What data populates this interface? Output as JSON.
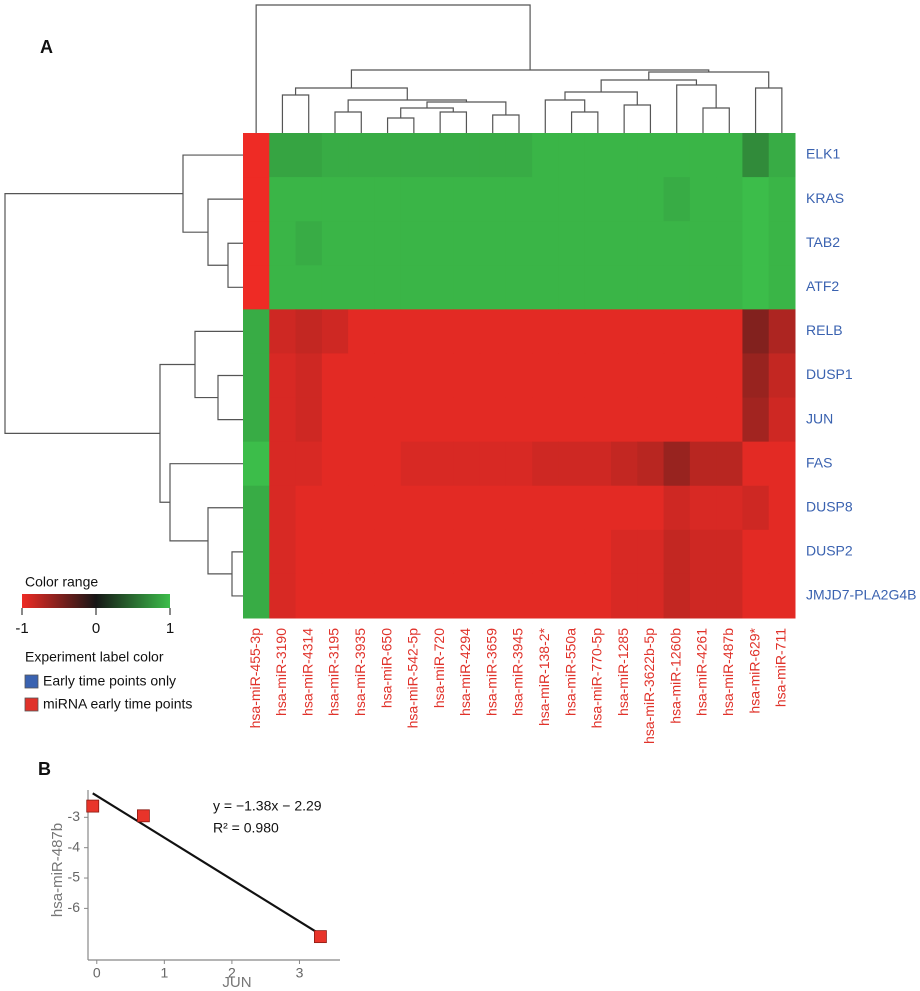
{
  "chart_data": [
    {
      "type": "heatmap",
      "panel_label": "A",
      "rows": [
        "ELK1",
        "KRAS",
        "TAB2",
        "ATF2",
        "RELB",
        "DUSP1",
        "JUN",
        "FAS",
        "DUSP8",
        "DUSP2",
        "JMJD7-PLA2G4B"
      ],
      "columns": [
        "hsa-miR-455-3p",
        "hsa-miR-3190",
        "hsa-miR-4314",
        "hsa-miR-3195",
        "hsa-miR-3935",
        "hsa-miR-650",
        "hsa-miR-542-5p",
        "hsa-miR-720",
        "hsa-miR-4294",
        "hsa-miR-3659",
        "hsa-miR-3945",
        "hsa-miR-138-2*",
        "hsa-miR-550a",
        "hsa-miR-770-5p",
        "hsa-miR-1285",
        "hsa-miR-3622b-5p",
        "hsa-miR-1260b",
        "hsa-miR-4261",
        "hsa-miR-487b",
        "hsa-miR-629*",
        "hsa-miR-711"
      ],
      "values": [
        [
          -1,
          0.85,
          0.85,
          0.9,
          0.9,
          0.9,
          0.9,
          0.9,
          0.9,
          0.9,
          0.9,
          0.95,
          0.95,
          0.95,
          0.95,
          0.95,
          0.95,
          0.95,
          0.95,
          0.7,
          0.9
        ],
        [
          -1,
          0.95,
          0.95,
          0.95,
          0.95,
          0.95,
          0.95,
          0.95,
          0.95,
          0.95,
          0.95,
          0.95,
          0.95,
          0.95,
          0.95,
          0.95,
          0.9,
          0.95,
          0.95,
          1,
          0.95
        ],
        [
          -1,
          0.95,
          0.9,
          0.95,
          0.95,
          0.95,
          0.95,
          0.95,
          0.95,
          0.95,
          0.95,
          0.95,
          0.95,
          0.95,
          0.95,
          0.95,
          0.95,
          0.95,
          0.95,
          1,
          0.95
        ],
        [
          -1,
          0.95,
          0.95,
          0.95,
          0.95,
          0.95,
          0.95,
          0.95,
          0.95,
          0.95,
          0.95,
          0.95,
          0.95,
          0.95,
          0.95,
          0.95,
          0.95,
          0.95,
          0.95,
          1,
          0.95
        ],
        [
          0.9,
          -0.85,
          -0.8,
          -0.85,
          -0.95,
          -0.95,
          -0.95,
          -0.95,
          -0.95,
          -0.95,
          -0.95,
          -0.95,
          -0.95,
          -0.95,
          -0.95,
          -0.95,
          -0.95,
          -0.95,
          -0.95,
          -0.5,
          -0.7
        ],
        [
          0.9,
          -0.9,
          -0.85,
          -0.95,
          -0.95,
          -0.95,
          -0.95,
          -0.95,
          -0.95,
          -0.95,
          -0.95,
          -0.95,
          -0.95,
          -0.95,
          -0.95,
          -0.95,
          -0.95,
          -0.95,
          -0.95,
          -0.6,
          -0.8
        ],
        [
          0.9,
          -0.9,
          -0.85,
          -0.95,
          -0.95,
          -0.95,
          -0.95,
          -0.95,
          -0.95,
          -0.95,
          -0.95,
          -0.95,
          -0.95,
          -0.95,
          -0.95,
          -0.95,
          -0.95,
          -0.95,
          -0.95,
          -0.65,
          -0.85
        ],
        [
          1,
          -0.9,
          -0.9,
          -0.95,
          -0.95,
          -0.95,
          -0.9,
          -0.9,
          -0.9,
          -0.9,
          -0.9,
          -0.85,
          -0.85,
          -0.85,
          -0.8,
          -0.75,
          -0.6,
          -0.75,
          -0.75,
          -0.95,
          -0.95
        ],
        [
          0.9,
          -0.9,
          -0.95,
          -0.95,
          -0.95,
          -0.95,
          -0.95,
          -0.95,
          -0.95,
          -0.95,
          -0.95,
          -0.95,
          -0.95,
          -0.95,
          -0.95,
          -0.95,
          -0.85,
          -0.9,
          -0.9,
          -0.85,
          -0.95
        ],
        [
          0.9,
          -0.9,
          -0.95,
          -0.95,
          -0.95,
          -0.95,
          -0.95,
          -0.95,
          -0.95,
          -0.95,
          -0.95,
          -0.95,
          -0.95,
          -0.95,
          -0.9,
          -0.9,
          -0.8,
          -0.85,
          -0.85,
          -0.95,
          -0.95
        ],
        [
          0.9,
          -0.9,
          -0.95,
          -0.95,
          -0.95,
          -0.95,
          -0.95,
          -0.95,
          -0.95,
          -0.95,
          -0.95,
          -0.95,
          -0.95,
          -0.95,
          -0.9,
          -0.9,
          -0.8,
          -0.85,
          -0.85,
          -0.95,
          -0.95
        ]
      ],
      "colorscale": [
        {
          "value": -1,
          "color": "#ee2b25"
        },
        {
          "value": 0,
          "color": "#161616"
        },
        {
          "value": 1,
          "color": "#3cbd4a"
        }
      ],
      "colorbar_title": "Color range",
      "colorbar_ticks": [
        -1,
        0,
        1
      ],
      "experiment_legend": {
        "title": "Experiment label color",
        "entries": [
          {
            "name": "Early time points only",
            "color": "#3a62b0"
          },
          {
            "name": "miRNA early time points",
            "color": "#e0322a"
          }
        ]
      },
      "row_label_color": "#3a62b0",
      "column_label_color": "#e0322a"
    },
    {
      "type": "scatter",
      "panel_label": "B",
      "x": [
        -0.06,
        0.69,
        3.31
      ],
      "values": [
        -2.63,
        -2.95,
        -6.93
      ],
      "color": "#e8342a",
      "line_color": "#111111",
      "xlim": [
        -0.13,
        3.6
      ],
      "ylim": [
        -7.7,
        -2.1
      ],
      "xticks": [
        0,
        1,
        2,
        3
      ],
      "yticks": [
        -3,
        -4,
        -5,
        -6
      ],
      "xlabel": "JUN",
      "ylabel": "hsa-miR-487b",
      "annotations": [
        "y = −1.38x − 2.29",
        "R² = 0.980"
      ],
      "fit": {
        "slope": -1.38,
        "intercept": -2.29
      }
    }
  ]
}
